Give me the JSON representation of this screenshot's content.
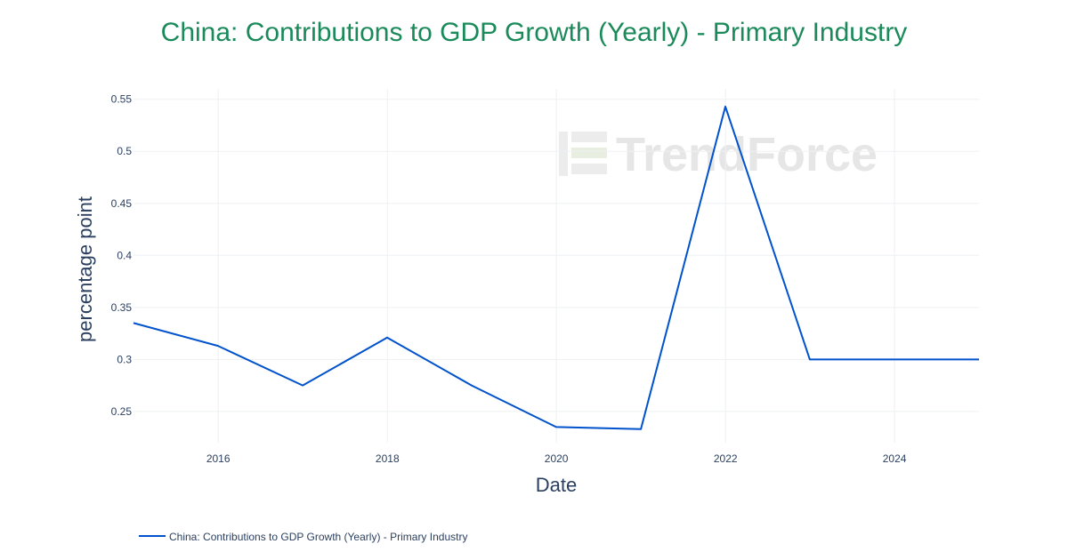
{
  "chart_data": {
    "type": "line",
    "title": "China: Contributions to GDP Growth (Yearly) - Primary Industry",
    "xlabel": "Date",
    "ylabel": "percentage point",
    "x": [
      "2014-12-31",
      "2015-12-31",
      "2016-12-31",
      "2017-12-31",
      "2018-12-31",
      "2019-12-31",
      "2020-12-31",
      "2021-12-31",
      "2022-12-31",
      "2023-12-31",
      "2024-12-31"
    ],
    "series": [
      {
        "name": "China: Contributions to GDP Growth (Yearly) - Primary Industry",
        "color": "#0052cc",
        "values": [
          0.335,
          0.313,
          0.275,
          0.321,
          0.275,
          0.235,
          0.233,
          0.543,
          0.3,
          0.3,
          0.3
        ]
      }
    ],
    "x_ticks": [
      "2016",
      "2018",
      "2020",
      "2022",
      "2024"
    ],
    "y_ticks": [
      "0.25",
      "0.3",
      "0.35",
      "0.4",
      "0.45",
      "0.5",
      "0.55"
    ],
    "xlim": [
      "2014-12-31",
      "2024-12-31"
    ],
    "ylim": [
      0.22,
      0.56
    ],
    "grid": true,
    "legend_position": "bottom-left"
  },
  "watermark": "TrendForce",
  "colors": {
    "title": "#1b8a5a",
    "line": "#0052cc",
    "grid": "#eef0f3",
    "text": "#2a3f5f"
  }
}
